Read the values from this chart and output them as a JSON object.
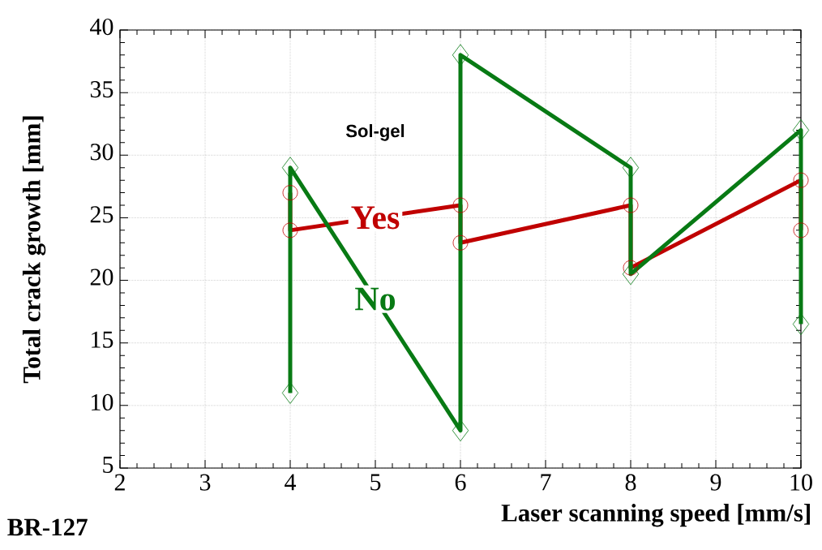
{
  "chart_data": {
    "type": "line",
    "xlabel": "Laser scanning speed [mm/s]",
    "ylabel": "Total crack growth [mm]",
    "xlim": [
      2,
      10
    ],
    "xticks": [
      2,
      3,
      4,
      5,
      6,
      7,
      8,
      9,
      10
    ],
    "ylim": [
      5,
      40
    ],
    "yticks": [
      5,
      10,
      15,
      20,
      25,
      30,
      35,
      40
    ],
    "grid": true,
    "line_style": "solid",
    "series": [
      {
        "name": "Yes",
        "color": "#c00000",
        "marker": "circle",
        "x": [
          4,
          4,
          6,
          6,
          8,
          8,
          10,
          10
        ],
        "values": [
          27,
          24,
          26,
          23,
          26,
          21,
          28,
          24
        ]
      },
      {
        "name": "No",
        "color": "#087a14",
        "marker": "diamond",
        "x": [
          4,
          4,
          6,
          6,
          8,
          8,
          10,
          10
        ],
        "values": [
          11,
          29,
          8,
          38,
          29,
          20.5,
          32,
          16.5
        ]
      }
    ],
    "annotations": [
      "Sol-gel",
      "BR-127"
    ]
  }
}
